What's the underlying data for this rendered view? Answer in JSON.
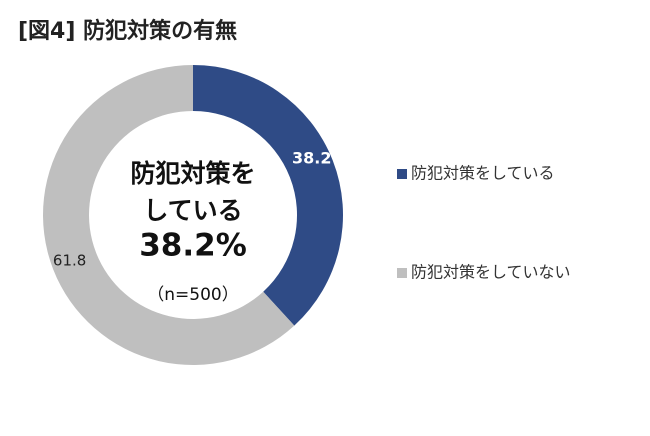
{
  "chart_data": {
    "type": "donut",
    "title": "[図4] 防犯対策の有無",
    "categories": [
      "防犯対策をしている",
      "防犯対策をしていない"
    ],
    "values": [
      38.2,
      61.8
    ],
    "colors": [
      "#2f4b86",
      "#bfbfbf"
    ],
    "center_text": [
      "防犯対策を",
      "している",
      "38.2%",
      "（n=500）"
    ],
    "legend": "right"
  }
}
